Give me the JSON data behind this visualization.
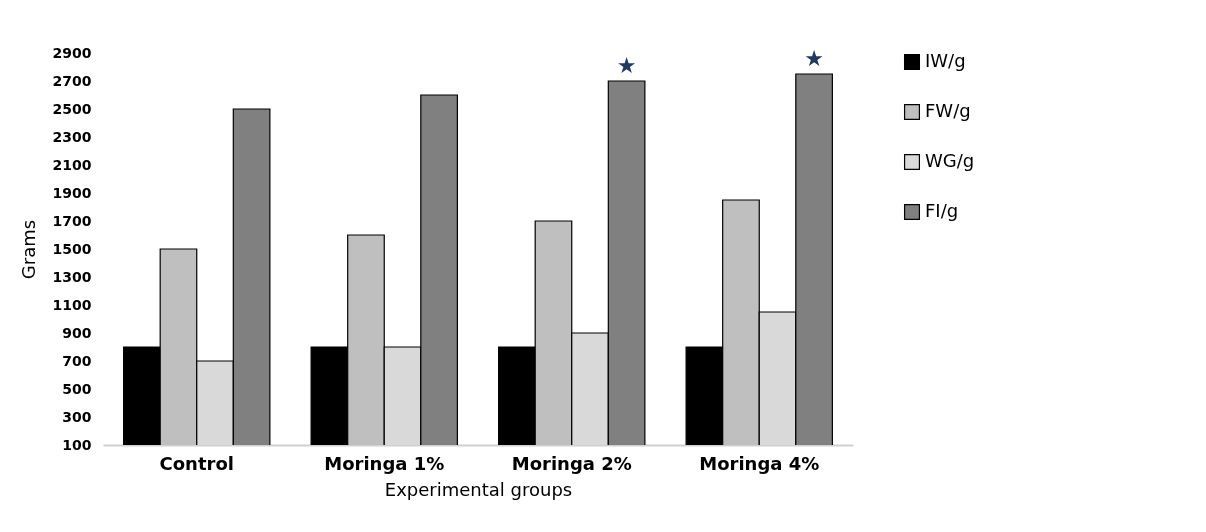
{
  "chart_data": {
    "type": "bar",
    "xlabel": "Experimental groups",
    "ylabel": "Grams",
    "categories": [
      "Control",
      "Moringa 1%",
      "Moringa 2%",
      "Moringa 4%"
    ],
    "series": [
      {
        "name": "IW/g",
        "color": "#000000",
        "values": [
          800,
          800,
          800,
          800
        ]
      },
      {
        "name": "FW/g",
        "color": "#bfbfbf",
        "values": [
          1500,
          1600,
          1700,
          1850
        ]
      },
      {
        "name": "WG/g",
        "color": "#d9d9d9",
        "values": [
          700,
          800,
          900,
          1050
        ]
      },
      {
        "name": "FI/g",
        "color": "#808080",
        "values": [
          2500,
          2600,
          2700,
          2750
        ]
      }
    ],
    "ylim": [
      100,
      2900
    ],
    "yticks": [
      100,
      300,
      500,
      700,
      900,
      1100,
      1300,
      1500,
      1700,
      1900,
      2100,
      2300,
      2500,
      2700,
      2900
    ],
    "annotations": [
      "★",
      "★"
    ],
    "grid": false,
    "legend": "right"
  }
}
